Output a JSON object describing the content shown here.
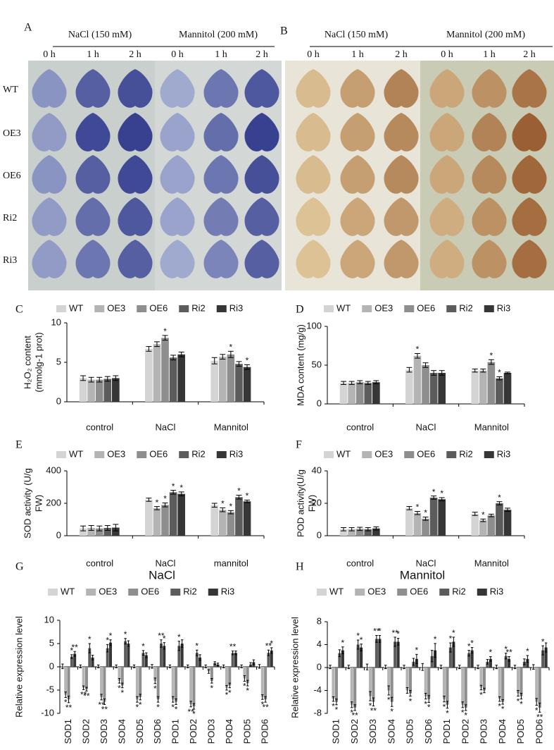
{
  "photos": [
    {
      "label": "A",
      "groups": [
        "NaCl (150 mM)",
        "Mannitol (200 mM)"
      ],
      "times": [
        "0 h",
        "1 h",
        "2 h",
        "0 h",
        "1 h",
        "2 h"
      ],
      "rows": [
        "WT",
        "OE3",
        "OE6",
        "Ri2",
        "Ri3"
      ]
    },
    {
      "label": "B",
      "groups": [
        "NaCl (150 mM)",
        "Mannitol (200 mM)"
      ],
      "times": [
        "0 h",
        "1 h",
        "2 h",
        "0 h",
        "1 h",
        "2 h"
      ]
    }
  ],
  "chart_data": [
    {
      "type": "bar",
      "panel_label": "C",
      "ylabel": [
        "H₂O₂ content",
        "(mmolg-1 prot)"
      ],
      "categories": [
        "control",
        "NaCl",
        "Mannitol"
      ],
      "ylim": [
        0,
        10
      ],
      "yticks": [
        0,
        5,
        10
      ],
      "series": [
        {
          "name": "WT",
          "color": "#d4d4d4",
          "values": [
            3.0,
            6.7,
            5.2
          ],
          "errors": [
            0.3,
            0.3,
            0.4
          ],
          "significance": [
            null,
            null,
            null
          ]
        },
        {
          "name": "OE3",
          "color": "#b4b4b4",
          "values": [
            2.8,
            7.3,
            5.7
          ],
          "errors": [
            0.3,
            0.3,
            0.3
          ],
          "significance": [
            null,
            null,
            null
          ]
        },
        {
          "name": "OE6",
          "color": "#8e8e8e",
          "values": [
            2.8,
            8.1,
            6.0
          ],
          "errors": [
            0.3,
            0.3,
            0.4
          ],
          "significance": [
            null,
            "*",
            "*"
          ]
        },
        {
          "name": "Ri2",
          "color": "#5c5c5c",
          "values": [
            2.9,
            5.6,
            4.8
          ],
          "errors": [
            0.3,
            0.3,
            0.3
          ],
          "significance": [
            null,
            null,
            null
          ]
        },
        {
          "name": "Ri3",
          "color": "#363636",
          "values": [
            3.0,
            6.0,
            4.4
          ],
          "errors": [
            0.3,
            0.3,
            0.3
          ],
          "significance": [
            null,
            null,
            "*"
          ]
        }
      ]
    },
    {
      "type": "bar",
      "panel_label": "D",
      "ylabel": [
        "MDA content (mg/g)"
      ],
      "categories": [
        "control",
        "NaCl",
        "Mannitol"
      ],
      "ylim": [
        0,
        100
      ],
      "yticks": [
        0,
        50,
        100
      ],
      "series": [
        {
          "name": "WT",
          "color": "#d4d4d4",
          "values": [
            27,
            44,
            43
          ],
          "errors": [
            2,
            3,
            2
          ],
          "significance": [
            null,
            null,
            null
          ]
        },
        {
          "name": "OE3",
          "color": "#b4b4b4",
          "values": [
            27,
            62,
            43
          ],
          "errors": [
            2,
            3,
            2
          ],
          "significance": [
            null,
            "*",
            null
          ]
        },
        {
          "name": "OE6",
          "color": "#8e8e8e",
          "values": [
            28,
            50,
            54
          ],
          "errors": [
            2,
            3,
            3
          ],
          "significance": [
            null,
            null,
            "*"
          ]
        },
        {
          "name": "Ri2",
          "color": "#5c5c5c",
          "values": [
            27,
            40,
            33
          ],
          "errors": [
            2,
            3,
            2
          ],
          "significance": [
            null,
            null,
            "*"
          ]
        },
        {
          "name": "Ri3",
          "color": "#363636",
          "values": [
            28,
            40,
            40
          ],
          "errors": [
            2,
            3,
            1
          ],
          "significance": [
            null,
            null,
            null
          ]
        }
      ]
    },
    {
      "type": "bar",
      "panel_label": "E",
      "ylabel": [
        "SOD activity (U/g",
        "FW)"
      ],
      "categories": [
        "control",
        "NaCl",
        "mannitol"
      ],
      "ylim": [
        0,
        400
      ],
      "yticks": [
        0,
        200,
        400
      ],
      "series": [
        {
          "name": "WT",
          "color": "#d4d4d4",
          "values": [
            45,
            222,
            188
          ],
          "errors": [
            15,
            10,
            12
          ],
          "significance": [
            null,
            null,
            null
          ]
        },
        {
          "name": "OE3",
          "color": "#b4b4b4",
          "values": [
            48,
            170,
            160
          ],
          "errors": [
            15,
            10,
            12
          ],
          "significance": [
            null,
            "*",
            "*"
          ]
        },
        {
          "name": "OE6",
          "color": "#8e8e8e",
          "values": [
            45,
            190,
            145
          ],
          "errors": [
            15,
            12,
            10
          ],
          "significance": [
            null,
            "*",
            "*"
          ]
        },
        {
          "name": "Ri2",
          "color": "#5c5c5c",
          "values": [
            48,
            268,
            238
          ],
          "errors": [
            15,
            12,
            12
          ],
          "significance": [
            null,
            "*",
            "*"
          ]
        },
        {
          "name": "Ri3",
          "color": "#363636",
          "values": [
            50,
            258,
            212
          ],
          "errors": [
            20,
            12,
            8
          ],
          "significance": [
            null,
            "*",
            "*"
          ]
        }
      ]
    },
    {
      "type": "bar",
      "panel_label": "F",
      "ylabel": [
        "POD activity(U/g",
        "FW)"
      ],
      "categories": [
        "control",
        "NaCl",
        "Mannitol"
      ],
      "ylim": [
        0,
        40
      ],
      "yticks": [
        0,
        20,
        40
      ],
      "series": [
        {
          "name": "WT",
          "color": "#d4d4d4",
          "values": [
            4,
            17,
            13.5
          ],
          "errors": [
            1,
            1,
            1
          ],
          "significance": [
            null,
            null,
            null
          ]
        },
        {
          "name": "OE3",
          "color": "#b4b4b4",
          "values": [
            4,
            14,
            9.5
          ],
          "errors": [
            1,
            1,
            0.8
          ],
          "significance": [
            null,
            "*",
            "*"
          ]
        },
        {
          "name": "OE6",
          "color": "#8e8e8e",
          "values": [
            4.2,
            10.5,
            12.5
          ],
          "errors": [
            1,
            1,
            0.8
          ],
          "significance": [
            null,
            "*",
            null
          ]
        },
        {
          "name": "Ri2",
          "color": "#5c5c5c",
          "values": [
            4,
            23.5,
            20
          ],
          "errors": [
            1,
            1,
            1
          ],
          "significance": [
            null,
            "*",
            "*"
          ]
        },
        {
          "name": "Ri3",
          "color": "#363636",
          "values": [
            4.5,
            22.5,
            16
          ],
          "errors": [
            1,
            1,
            1
          ],
          "significance": [
            null,
            "*",
            null
          ]
        }
      ]
    },
    {
      "type": "bar",
      "panel_label": "G",
      "title": "NaCl",
      "ylabel": [
        "Relative expression level"
      ],
      "categories": [
        "SOD1",
        "SOD2",
        "SOD3",
        "SOD4",
        "SOD5",
        "SOD6",
        "POD1",
        "POD2",
        "POD3",
        "POD4",
        "POD5",
        "POD6"
      ],
      "ylim": [
        -10,
        10
      ],
      "yticks": [
        -10,
        -5,
        0,
        5,
        10
      ],
      "series": [
        {
          "name": "WT",
          "color": "#d4d4d4",
          "values": [
            0.1,
            0.1,
            0.1,
            0.1,
            0.1,
            0.1,
            0.1,
            0.1,
            0.1,
            0.1,
            0.1,
            0.1
          ],
          "errors": [
            0.5,
            0.3,
            0.3,
            0.3,
            0.3,
            0.4,
            0.3,
            0.3,
            0.3,
            0.3,
            0.3,
            0.4
          ],
          "significance": [
            null,
            null,
            null,
            null,
            null,
            null,
            null,
            null,
            null,
            null,
            null,
            null
          ]
        },
        {
          "name": "OE3",
          "color": "#b4b4b4",
          "values": [
            -6,
            -4.5,
            -6.5,
            -3,
            -7,
            -3,
            -7,
            -8,
            -1,
            -4.5,
            -2.5,
            -6.5
          ],
          "errors": [
            0.6,
            0.4,
            0.6,
            0.5,
            0.6,
            0.6,
            0.6,
            0.6,
            0.4,
            0.5,
            0.6,
            0.5
          ],
          "significance": [
            "*",
            "**",
            "**",
            "*",
            "*",
            "*",
            "*",
            "**",
            null,
            "*",
            "*",
            "*"
          ]
        },
        {
          "name": "OE6",
          "color": "#8e8e8e",
          "values": [
            -7,
            -4.8,
            -7.5,
            -4,
            -6.5,
            -7,
            -7.5,
            -8.5,
            -3,
            -4,
            -3.5,
            -7
          ],
          "errors": [
            0.7,
            0.4,
            0.6,
            0.5,
            0.6,
            0.6,
            0.6,
            0.6,
            0.5,
            0.5,
            0.6,
            0.6
          ],
          "significance": [
            "**",
            "**",
            "**",
            "*",
            "*",
            "*",
            "*",
            "*",
            "*",
            "*",
            "*",
            "**"
          ]
        },
        {
          "name": "Ri2",
          "color": "#5c5c5c",
          "values": [
            2.2,
            4,
            4,
            5.5,
            3,
            5,
            4.5,
            3,
            0.8,
            3,
            0.5,
            3
          ],
          "errors": [
            0.4,
            1,
            0.8,
            0.6,
            0.5,
            0.8,
            1,
            0.6,
            0.3,
            0.4,
            0.4,
            0.6
          ],
          "significance": [
            "*",
            "*",
            "*",
            "*",
            "*",
            "**",
            "*",
            "*",
            null,
            "**",
            null,
            "**"
          ]
        },
        {
          "name": "Ri3",
          "color": "#363636",
          "values": [
            2.8,
            2,
            5.2,
            5,
            2.5,
            4.5,
            5,
            2,
            0.5,
            3,
            1,
            3.5
          ],
          "errors": [
            0.5,
            0.5,
            0.6,
            0.6,
            0.5,
            0.7,
            0.8,
            0.6,
            0.3,
            0.4,
            0.5,
            0.6
          ],
          "significance": [
            "**",
            null,
            "*",
            null,
            null,
            "*",
            null,
            null,
            null,
            null,
            null,
            "*"
          ]
        }
      ]
    },
    {
      "type": "bar",
      "panel_label": "H",
      "title": "Mannitol",
      "ylabel": [
        "Relative expression level"
      ],
      "categories": [
        "SOD1",
        "SOD2",
        "SOD3",
        "SOD4",
        "SOD5",
        "SOD6",
        "POD1",
        "POD2",
        "POD3",
        "POD4",
        "POD5",
        "POD6"
      ],
      "ylim": [
        -8,
        8
      ],
      "yticks": [
        -8,
        -4,
        0,
        4,
        8
      ],
      "series": [
        {
          "name": "WT",
          "color": "#d4d4d4",
          "values": [
            0.1,
            0.1,
            0.1,
            0.1,
            0.1,
            0.1,
            0.1,
            0.1,
            0.1,
            0.1,
            0.1,
            0.1
          ],
          "errors": [
            0.3,
            0.3,
            0.5,
            0.3,
            0.3,
            0.6,
            0.3,
            0.3,
            0.3,
            0.3,
            0.3,
            0.4
          ],
          "significance": [
            null,
            null,
            null,
            null,
            null,
            null,
            null,
            null,
            null,
            null,
            null,
            null
          ]
        },
        {
          "name": "OE3",
          "color": "#b4b4b4",
          "values": [
            -5.5,
            -6.5,
            -5,
            -4,
            -4,
            -5,
            -5.5,
            -6.5,
            -3.5,
            -5.5,
            -4.5,
            -6
          ],
          "errors": [
            0.4,
            0.5,
            0.8,
            0.8,
            0.5,
            0.5,
            0.5,
            0.5,
            0.4,
            0.4,
            0.5,
            0.6
          ],
          "significance": [
            "*",
            "*",
            "*",
            "*",
            null,
            "*",
            "*",
            "*",
            "*",
            "*",
            "*",
            "*"
          ]
        },
        {
          "name": "OE6",
          "color": "#8e8e8e",
          "values": [
            -6,
            -7,
            -6,
            -6,
            -4.5,
            -5.5,
            -6.5,
            -7,
            -4,
            -6,
            -5,
            -7
          ],
          "errors": [
            0.5,
            0.5,
            0.7,
            0.8,
            0.5,
            0.6,
            0.6,
            0.5,
            0.4,
            0.4,
            0.5,
            0.8
          ],
          "significance": [
            "*",
            "**",
            "**",
            "*",
            "*",
            "*",
            "*",
            "*",
            null,
            "*",
            "*",
            "**"
          ]
        },
        {
          "name": "Ri2",
          "color": "#5c5c5c",
          "values": [
            2.5,
            4,
            5,
            4.5,
            1,
            2,
            3.5,
            2.5,
            1,
            2,
            1,
            3
          ],
          "errors": [
            0.6,
            0.8,
            0.6,
            0.8,
            0.6,
            1,
            0.8,
            0.5,
            0.4,
            0.5,
            0.5,
            0.8
          ],
          "significance": [
            null,
            "*",
            "**",
            "**",
            null,
            null,
            "*",
            "*",
            null,
            "*",
            null,
            "*"
          ]
        },
        {
          "name": "Ri3",
          "color": "#363636",
          "values": [
            3,
            3.5,
            5,
            4.5,
            1.5,
            3,
            4.5,
            3,
            1.5,
            1.5,
            1.5,
            3.5
          ],
          "errors": [
            0.6,
            0.6,
            0.6,
            0.6,
            0.8,
            1.2,
            0.8,
            0.5,
            0.4,
            0.4,
            0.6,
            0.8
          ],
          "significance": [
            "*",
            "*",
            "*",
            "*",
            "*",
            "*",
            "*",
            "*",
            "*",
            "**",
            "*",
            null
          ]
        }
      ]
    }
  ]
}
